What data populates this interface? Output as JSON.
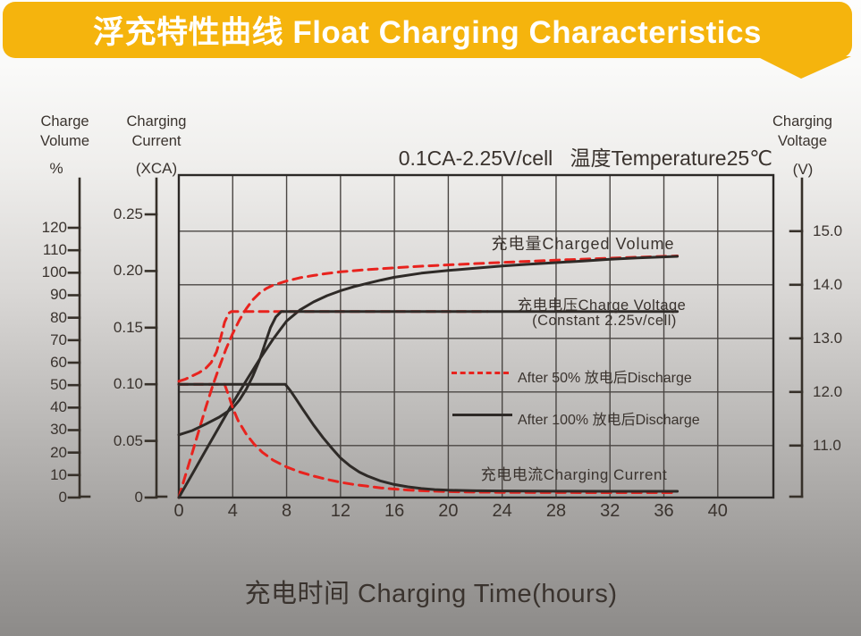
{
  "banner": {
    "title": "浮充特性曲线 Float Charging Characteristics",
    "bg_color": "#F5B40D",
    "text_color": "#FFFFFF"
  },
  "condition_note": "0.1CA-2.25V/cell   温度Temperature25℃",
  "x_axis_title": "充电时间 Charging Time(hours)",
  "axis_headers": {
    "volume_title": "Charge\nVolume",
    "volume_unit": "%",
    "current_title": "Charging\nCurrent",
    "current_unit": "(XCA)",
    "voltage_title": "Charging\nVoltage",
    "voltage_unit": "(V)"
  },
  "annotations": {
    "charged_volume": "充电量Charged Volume",
    "charge_voltage": "充电电压Charge Voltage",
    "charge_voltage_const": "(Constant 2.25v/cell)",
    "charging_current": "充电电流Charging Current"
  },
  "legend": [
    {
      "label": "After 50% 放电后Discharge",
      "style": "dashed",
      "color": "#E8231E"
    },
    {
      "label": "After 100% 放电后Discharge",
      "style": "solid",
      "color": "#2E2A27"
    }
  ],
  "colors": {
    "accent_yellow": "#F5B40D",
    "curve_red": "#E8231E",
    "curve_black": "#2E2A27",
    "text_dark": "#3A332E"
  },
  "chart_data": {
    "type": "line",
    "title": "浮充特性曲线 Float Charging Characteristics",
    "condition": "0.1CA-2.25V/cell 温度Temperature25℃",
    "x_axis": {
      "label": "充电时间 Charging Time(hours)",
      "min": 0,
      "max": 44,
      "ticks": [
        0,
        4,
        8,
        12,
        16,
        20,
        24,
        28,
        32,
        36,
        40
      ]
    },
    "value_axes": {
      "volume": {
        "label": "Charge Volume",
        "unit": "%",
        "min": 0,
        "max": 120,
        "ticks": [
          {
            "v": 120,
            "label": "120"
          },
          {
            "v": 110,
            "label": "110"
          },
          {
            "v": 100,
            "label": "100"
          },
          {
            "v": 90,
            "label": "90"
          },
          {
            "v": 80,
            "label": "80"
          },
          {
            "v": 70,
            "label": "70"
          },
          {
            "v": 60,
            "label": "60"
          },
          {
            "v": 50,
            "label": "50"
          },
          {
            "v": 40,
            "label": "40"
          },
          {
            "v": 30,
            "label": "30"
          },
          {
            "v": 20,
            "label": "20"
          },
          {
            "v": 10,
            "label": "10"
          },
          {
            "v": 0,
            "label": "0"
          }
        ]
      },
      "current": {
        "label": "Charging Current",
        "unit": "XCA",
        "min": 0,
        "max": 0.25,
        "ticks": [
          {
            "v": 0.25,
            "label": "0.25"
          },
          {
            "v": 0.2,
            "label": "0.20"
          },
          {
            "v": 0.15,
            "label": "0.15"
          },
          {
            "v": 0.1,
            "label": "0.10"
          },
          {
            "v": 0.05,
            "label": "0.05"
          },
          {
            "v": 0,
            "label": "0"
          }
        ]
      },
      "voltage": {
        "label": "Charging Voltage",
        "unit": "V",
        "min": 10,
        "max": 16,
        "ticks": [
          {
            "v": 15.0,
            "label": "15.0"
          },
          {
            "v": 14.0,
            "label": "14.0"
          },
          {
            "v": 13.0,
            "label": "13.0"
          },
          {
            "v": 12.0,
            "label": "12.0"
          },
          {
            "v": 11.0,
            "label": "11.0"
          }
        ]
      }
    },
    "grid": {
      "vertical_at_x_ticks": true,
      "horizontal_at_voltage_ticks": true
    },
    "series": [
      {
        "name": "charged_volume_after_50_discharge",
        "axis": "volume",
        "style": "dashed",
        "color": "#E8231E",
        "points": [
          [
            0,
            0
          ],
          [
            0.5,
            10
          ],
          [
            1,
            20
          ],
          [
            1.5,
            30
          ],
          [
            2,
            40
          ],
          [
            2.5,
            49.5
          ],
          [
            3,
            58
          ],
          [
            3.5,
            66
          ],
          [
            4,
            73
          ],
          [
            4.5,
            79
          ],
          [
            5,
            84
          ],
          [
            5.5,
            88
          ],
          [
            6,
            91
          ],
          [
            6.5,
            93
          ],
          [
            7,
            94.5
          ],
          [
            8,
            96.3
          ],
          [
            9,
            97.8
          ],
          [
            10,
            98.8
          ],
          [
            11,
            99.7
          ],
          [
            12,
            100.4
          ],
          [
            14,
            101.4
          ],
          [
            16,
            102.2
          ],
          [
            18,
            102.9
          ],
          [
            20,
            103.5
          ],
          [
            24,
            104.6
          ],
          [
            28,
            105.6
          ],
          [
            32,
            106.5
          ],
          [
            37,
            107.5
          ]
        ]
      },
      {
        "name": "charged_volume_after_100_discharge",
        "axis": "volume",
        "style": "solid",
        "color": "#2E2A27",
        "points": [
          [
            0,
            0
          ],
          [
            1,
            10.5
          ],
          [
            2,
            21
          ],
          [
            3,
            31.5
          ],
          [
            4,
            42
          ],
          [
            5,
            52
          ],
          [
            6,
            61.5
          ],
          [
            7,
            70.5
          ],
          [
            7.5,
            74.5
          ],
          [
            8,
            78.5
          ],
          [
            9,
            83.5
          ],
          [
            10,
            87
          ],
          [
            11,
            89.8
          ],
          [
            12,
            92
          ],
          [
            13,
            93.8
          ],
          [
            14,
            95.3
          ],
          [
            15,
            96.7
          ],
          [
            16,
            98
          ],
          [
            18,
            99.8
          ],
          [
            20,
            101
          ],
          [
            22,
            102
          ],
          [
            24,
            103
          ],
          [
            26,
            103.8
          ],
          [
            28,
            104.5
          ],
          [
            30,
            105.2
          ],
          [
            32,
            106
          ],
          [
            34,
            106.6
          ],
          [
            37,
            107.3
          ]
        ]
      },
      {
        "name": "charge_voltage_after_50_discharge",
        "axis": "voltage",
        "style": "dashed",
        "color": "#E8231E",
        "points": [
          [
            0,
            12.2
          ],
          [
            0.5,
            12.24
          ],
          [
            1,
            12.3
          ],
          [
            1.5,
            12.36
          ],
          [
            2,
            12.44
          ],
          [
            2.4,
            12.55
          ],
          [
            2.8,
            12.75
          ],
          [
            3.1,
            13.0
          ],
          [
            3.4,
            13.3
          ],
          [
            3.7,
            13.47
          ],
          [
            3.9,
            13.5
          ],
          [
            22.9,
            13.5
          ]
        ]
      },
      {
        "name": "charge_voltage_after_100_discharge",
        "axis": "voltage",
        "style": "solid",
        "color": "#2E2A27",
        "points": [
          [
            0,
            11.2
          ],
          [
            1,
            11.28
          ],
          [
            2,
            11.4
          ],
          [
            3,
            11.53
          ],
          [
            4,
            11.7
          ],
          [
            4.5,
            11.85
          ],
          [
            5,
            12.05
          ],
          [
            5.5,
            12.3
          ],
          [
            6,
            12.6
          ],
          [
            6.4,
            12.9
          ],
          [
            6.8,
            13.2
          ],
          [
            7.2,
            13.4
          ],
          [
            7.6,
            13.5
          ],
          [
            37,
            13.5
          ]
        ]
      },
      {
        "name": "charging_current_after_50_discharge",
        "axis": "current",
        "style": "dashed",
        "color": "#E8231E",
        "points": [
          [
            0,
            0.1
          ],
          [
            3.4,
            0.1
          ],
          [
            3.7,
            0.09
          ],
          [
            4,
            0.079
          ],
          [
            4.4,
            0.068
          ],
          [
            5,
            0.056
          ],
          [
            5.6,
            0.047
          ],
          [
            6.2,
            0.04
          ],
          [
            7,
            0.033
          ],
          [
            8,
            0.027
          ],
          [
            9,
            0.0225
          ],
          [
            10,
            0.019
          ],
          [
            11,
            0.016
          ],
          [
            12,
            0.0135
          ],
          [
            13,
            0.0115
          ],
          [
            14,
            0.01
          ],
          [
            15,
            0.0085
          ],
          [
            16,
            0.0075
          ],
          [
            17,
            0.0066
          ],
          [
            18,
            0.006
          ],
          [
            20,
            0.0052
          ],
          [
            22,
            0.0048
          ],
          [
            24,
            0.0046
          ],
          [
            28,
            0.0044
          ],
          [
            32,
            0.0043
          ],
          [
            37,
            0.0043
          ]
        ]
      },
      {
        "name": "charging_current_after_100_discharge",
        "axis": "current",
        "style": "solid",
        "color": "#2E2A27",
        "points": [
          [
            0,
            0.1
          ],
          [
            7.9,
            0.1
          ],
          [
            8.3,
            0.094
          ],
          [
            8.7,
            0.087
          ],
          [
            9.2,
            0.078
          ],
          [
            10,
            0.064
          ],
          [
            10.7,
            0.053
          ],
          [
            11.4,
            0.043
          ],
          [
            12,
            0.035
          ],
          [
            12.7,
            0.028
          ],
          [
            13.4,
            0.0225
          ],
          [
            14,
            0.019
          ],
          [
            15,
            0.0145
          ],
          [
            16,
            0.0115
          ],
          [
            17,
            0.0095
          ],
          [
            18,
            0.008
          ],
          [
            19,
            0.007
          ],
          [
            20,
            0.0065
          ],
          [
            22,
            0.006
          ],
          [
            24,
            0.0058
          ],
          [
            28,
            0.0056
          ],
          [
            32,
            0.0055
          ],
          [
            37,
            0.0055
          ]
        ]
      }
    ],
    "legend_position": "center-right-inside"
  }
}
